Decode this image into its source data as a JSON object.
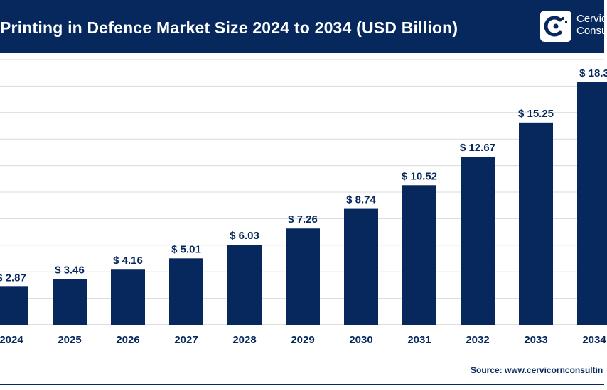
{
  "header": {
    "title": "Printing in Defence Market Size 2024 to 2034 (USD Billion)",
    "logo_line1": "Cervic",
    "logo_line2": "Consu",
    "bg_color": "#06285c"
  },
  "source_text": "Source: www.cervicornconsultin",
  "chart_data": {
    "type": "bar",
    "title": "Printing in Defence Market Size 2024 to 2034 (USD Billion)",
    "categories": [
      "2024",
      "2025",
      "2026",
      "2027",
      "2028",
      "2029",
      "2030",
      "2031",
      "2032",
      "2033",
      "2034"
    ],
    "values": [
      2.87,
      3.46,
      4.16,
      5.01,
      6.03,
      7.26,
      8.74,
      10.52,
      12.67,
      15.25,
      18.3
    ],
    "labels": [
      "$ 2.87",
      "$ 3.46",
      "$ 4.16",
      "$ 5.01",
      "$ 6.03",
      "$ 7.26",
      "$ 8.74",
      "$ 10.52",
      "$ 12.67",
      "$ 15.25",
      "$ 18.3"
    ],
    "xlabel": "",
    "ylabel": "",
    "ylim": [
      0,
      20
    ],
    "grid": true,
    "bar_color": "#06285c",
    "grid_color": "#d9d9d9"
  }
}
